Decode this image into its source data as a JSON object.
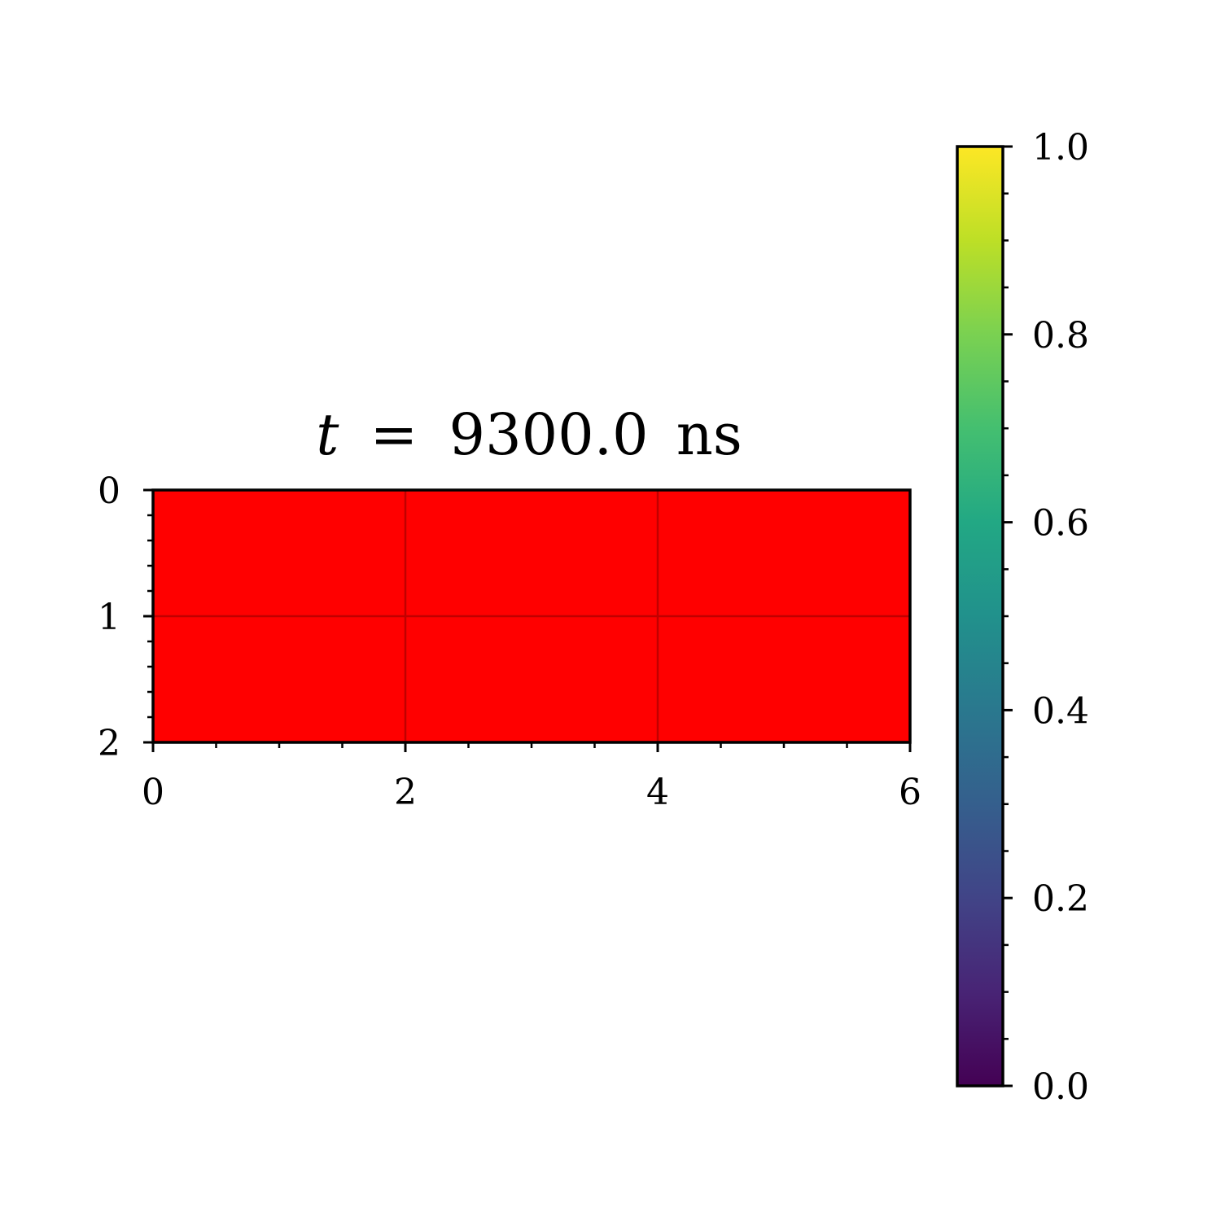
{
  "chart_data": {
    "type": "heatmap",
    "title": {
      "variable": "t",
      "equals": "=",
      "value": "9300.0",
      "unit": "ns"
    },
    "xlabel": "",
    "ylabel": "",
    "xlim": [
      0,
      6
    ],
    "ylim": [
      2,
      0
    ],
    "y_inverted": true,
    "x_ticks": [
      0,
      2,
      4,
      6
    ],
    "x_tick_labels": [
      "0",
      "2",
      "4",
      "6"
    ],
    "x_minor_ticks": [
      0.5,
      1,
      1.5,
      2.5,
      3,
      3.5,
      4.5,
      5,
      5.5
    ],
    "y_ticks": [
      0,
      1,
      2
    ],
    "y_tick_labels": [
      "0",
      "1",
      "2"
    ],
    "y_minor_ticks": [
      0.2,
      0.4,
      0.6,
      0.8,
      1.2,
      1.4,
      1.6,
      1.8
    ],
    "grid": true,
    "field_color": "#ff0000",
    "grid_color": "#c00000",
    "colorbar": {
      "colormap": "viridis",
      "range": [
        0.0,
        1.0
      ],
      "ticks": [
        0.0,
        0.2,
        0.4,
        0.6,
        0.8,
        1.0
      ],
      "tick_labels": [
        "0.0",
        "0.2",
        "0.4",
        "0.6",
        "0.8",
        "1.0"
      ],
      "minor_ticks": [
        0.05,
        0.1,
        0.15,
        0.25,
        0.3,
        0.35,
        0.45,
        0.5,
        0.55,
        0.65,
        0.7,
        0.75,
        0.85,
        0.9,
        0.95
      ]
    }
  }
}
